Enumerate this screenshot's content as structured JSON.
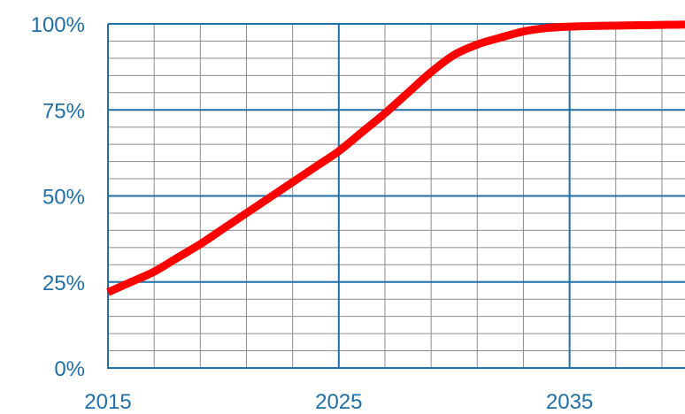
{
  "chart_data": {
    "type": "line",
    "title": "",
    "xlabel": "",
    "ylabel": "",
    "xlim": [
      2015,
      2040
    ],
    "ylim": [
      0,
      100
    ],
    "x_ticks": [
      2015,
      2025,
      2035
    ],
    "x_tick_labels": [
      "2015",
      "2025",
      "2035"
    ],
    "y_ticks": [
      0,
      25,
      50,
      75,
      100
    ],
    "y_tick_labels": [
      "0%",
      "25%",
      "50%",
      "75%",
      "100%"
    ],
    "grid": true,
    "legend": "none",
    "series": [
      {
        "color": "#ff0000",
        "x": [
          2015,
          2016,
          2017,
          2018,
          2019,
          2020,
          2021,
          2022,
          2023,
          2024,
          2025,
          2026,
          2027,
          2028,
          2029,
          2030,
          2031,
          2032,
          2033,
          2034,
          2035,
          2036,
          2037,
          2038,
          2039,
          2040
        ],
        "y": [
          22,
          25,
          28,
          32,
          36,
          40.5,
          45,
          49.5,
          54,
          58.5,
          63,
          68.5,
          74,
          80,
          86,
          91,
          94,
          96,
          97.8,
          98.8,
          99.2,
          99.4,
          99.5,
          99.6,
          99.7,
          99.8
        ]
      }
    ]
  },
  "colors": {
    "major_grid": "#1f6fa8",
    "minor_grid": "#8c8c8c",
    "axis": "#1f6fa8",
    "tick_text": "#1f6fa8",
    "line": "#ff0000"
  }
}
